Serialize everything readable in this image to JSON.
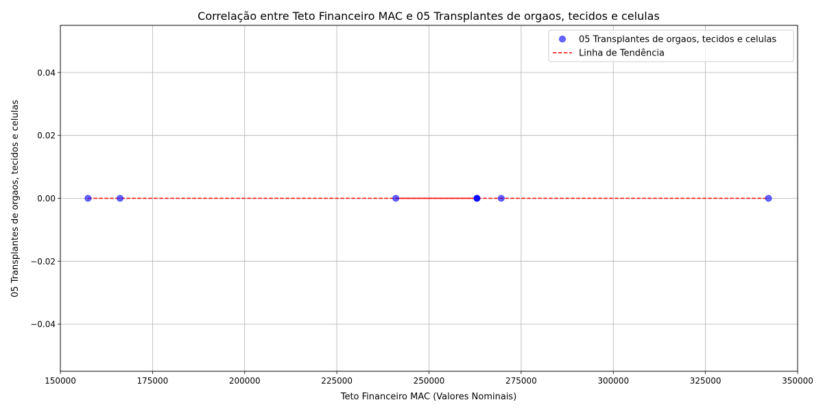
{
  "chart_data": {
    "type": "scatter",
    "title": "Correlação entre Teto Financeiro MAC e 05 Transplantes de orgaos, tecidos e celulas",
    "xlabel": "Teto Financeiro MAC (Valores Nominais)",
    "ylabel": "05 Transplantes de orgaos, tecidos e celulas",
    "xlim": [
      150000,
      350000
    ],
    "ylim": [
      -0.055,
      0.055
    ],
    "x_ticks": [
      150000,
      175000,
      200000,
      225000,
      250000,
      275000,
      300000,
      325000,
      350000
    ],
    "y_ticks": [
      -0.04,
      -0.02,
      0.0,
      0.02,
      0.04
    ],
    "x_tick_labels": [
      "150000",
      "175000",
      "200000",
      "225000",
      "250000",
      "275000",
      "300000",
      "325000",
      "350000"
    ],
    "y_tick_labels": [
      "−0.04",
      "−0.02",
      "0.00",
      "0.02",
      "0.04"
    ],
    "grid": true,
    "legend_position": "top-right",
    "series": [
      {
        "name": "05 Transplantes de orgaos, tecidos e celulas",
        "kind": "scatter",
        "color": "#0000ff",
        "points": [
          {
            "x": 157500,
            "y": 0
          },
          {
            "x": 166200,
            "y": 0
          },
          {
            "x": 241000,
            "y": 0
          },
          {
            "x": 263000,
            "y": 0
          },
          {
            "x": 263000,
            "y": 0
          },
          {
            "x": 263000,
            "y": 0
          },
          {
            "x": 269600,
            "y": 0
          },
          {
            "x": 342100,
            "y": 0
          }
        ]
      },
      {
        "name": "Linha de Tendência",
        "kind": "line",
        "style": "dashed",
        "color": "#ff0000",
        "points": [
          {
            "x": 157500,
            "y": 0
          },
          {
            "x": 342100,
            "y": 0
          }
        ]
      }
    ],
    "solid_segment": {
      "color": "#ff0000",
      "x": [
        241000,
        263000
      ],
      "y": 0
    }
  }
}
